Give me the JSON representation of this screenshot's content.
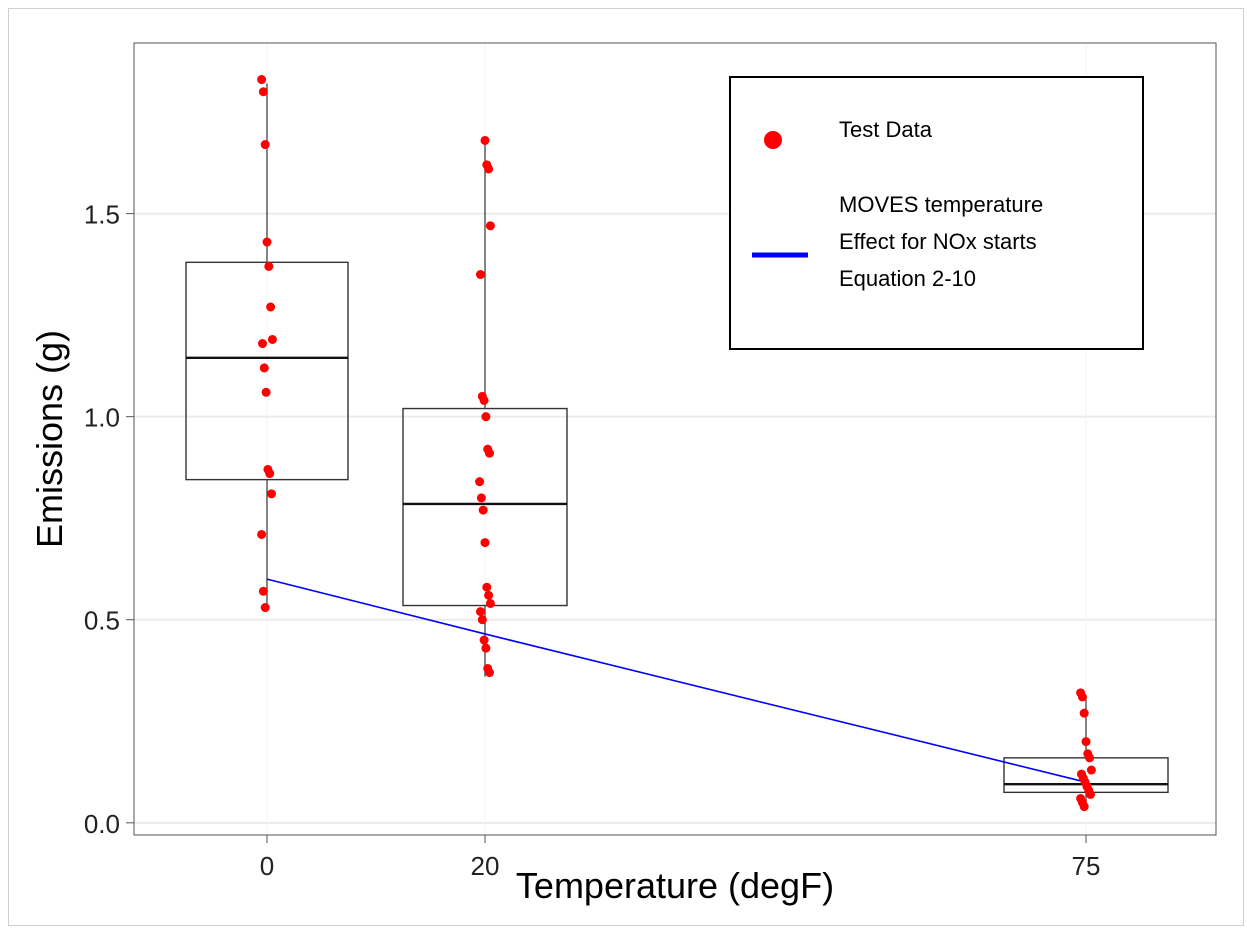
{
  "chart_data": {
    "type": "boxplot",
    "xlabel": "Temperature (degF)",
    "ylabel": "Emissions (g)",
    "categories": [
      "0",
      "20",
      "75"
    ],
    "x_values": [
      0,
      20,
      75
    ],
    "ylim": [
      -0.03,
      1.92
    ],
    "yticks": [
      {
        "value": 0.0,
        "label": "0.0"
      },
      {
        "value": 0.5,
        "label": "0.5"
      },
      {
        "value": 1.0,
        "label": "1.0"
      },
      {
        "value": 1.5,
        "label": "1.5"
      }
    ],
    "grid": true,
    "boxes": [
      {
        "category": "0",
        "x": 0,
        "q1": 0.845,
        "median": 1.145,
        "q3": 1.38,
        "whisker_low": 0.52,
        "whisker_high": 1.82
      },
      {
        "category": "20",
        "x": 20,
        "q1": 0.535,
        "median": 0.785,
        "q3": 1.02,
        "whisker_low": 0.36,
        "whisker_high": 1.68
      },
      {
        "category": "75",
        "x": 75,
        "q1": 0.075,
        "median": 0.095,
        "q3": 0.16,
        "whisker_low": 0.03,
        "whisker_high": 0.31
      }
    ],
    "series": [
      {
        "name": "Test Data",
        "type": "scatter",
        "color": "#ff0000",
        "points": [
          {
            "x": 0,
            "y": 1.83
          },
          {
            "x": 0,
            "y": 1.8
          },
          {
            "x": 0,
            "y": 1.67
          },
          {
            "x": 0,
            "y": 1.43
          },
          {
            "x": 0,
            "y": 1.37
          },
          {
            "x": 0,
            "y": 1.27
          },
          {
            "x": 0,
            "y": 1.19
          },
          {
            "x": 0,
            "y": 1.18
          },
          {
            "x": 0,
            "y": 1.12
          },
          {
            "x": 0,
            "y": 1.06
          },
          {
            "x": 0,
            "y": 0.87
          },
          {
            "x": 0,
            "y": 0.86
          },
          {
            "x": 0,
            "y": 0.81
          },
          {
            "x": 0,
            "y": 0.71
          },
          {
            "x": 0,
            "y": 0.57
          },
          {
            "x": 0,
            "y": 0.53
          },
          {
            "x": 20,
            "y": 1.68
          },
          {
            "x": 20,
            "y": 1.62
          },
          {
            "x": 20,
            "y": 1.61
          },
          {
            "x": 20,
            "y": 1.47
          },
          {
            "x": 20,
            "y": 1.35
          },
          {
            "x": 20,
            "y": 1.05
          },
          {
            "x": 20,
            "y": 1.04
          },
          {
            "x": 20,
            "y": 1.0
          },
          {
            "x": 20,
            "y": 0.92
          },
          {
            "x": 20,
            "y": 0.91
          },
          {
            "x": 20,
            "y": 0.84
          },
          {
            "x": 20,
            "y": 0.8
          },
          {
            "x": 20,
            "y": 0.77
          },
          {
            "x": 20,
            "y": 0.69
          },
          {
            "x": 20,
            "y": 0.58
          },
          {
            "x": 20,
            "y": 0.56
          },
          {
            "x": 20,
            "y": 0.54
          },
          {
            "x": 20,
            "y": 0.52
          },
          {
            "x": 20,
            "y": 0.5
          },
          {
            "x": 20,
            "y": 0.45
          },
          {
            "x": 20,
            "y": 0.43
          },
          {
            "x": 20,
            "y": 0.38
          },
          {
            "x": 20,
            "y": 0.37
          },
          {
            "x": 75,
            "y": 0.32
          },
          {
            "x": 75,
            "y": 0.31
          },
          {
            "x": 75,
            "y": 0.27
          },
          {
            "x": 75,
            "y": 0.2
          },
          {
            "x": 75,
            "y": 0.17
          },
          {
            "x": 75,
            "y": 0.16
          },
          {
            "x": 75,
            "y": 0.13
          },
          {
            "x": 75,
            "y": 0.12
          },
          {
            "x": 75,
            "y": 0.11
          },
          {
            "x": 75,
            "y": 0.1
          },
          {
            "x": 75,
            "y": 0.09
          },
          {
            "x": 75,
            "y": 0.08
          },
          {
            "x": 75,
            "y": 0.07
          },
          {
            "x": 75,
            "y": 0.06
          },
          {
            "x": 75,
            "y": 0.05
          },
          {
            "x": 75,
            "y": 0.04
          }
        ]
      },
      {
        "name_lines": [
          "MOVES temperature",
          "Effect for NOx starts",
          "Equation 2-10"
        ],
        "type": "line",
        "color": "#0000ff",
        "points": [
          {
            "x": 0,
            "y": 0.6
          },
          {
            "x": 20,
            "y": 0.465
          },
          {
            "x": 75,
            "y": 0.1
          }
        ]
      }
    ],
    "legend": {
      "position": "top-right",
      "entries": [
        {
          "label_lines": [
            "Test Data"
          ],
          "marker": "circle",
          "color": "#ff0000"
        },
        {
          "label_lines": [
            "MOVES temperature",
            "Effect for NOx starts",
            "Equation 2-10"
          ],
          "marker": "line",
          "color": "#0000ff"
        }
      ]
    }
  }
}
